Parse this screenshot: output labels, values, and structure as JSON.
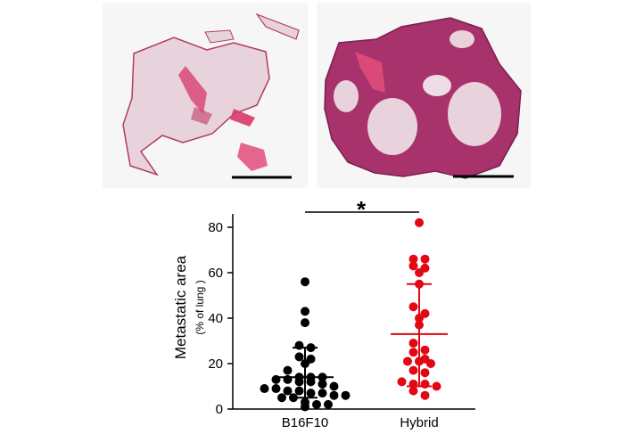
{
  "figure": {
    "histology_panels": [
      "B16F10",
      "Hybrid"
    ]
  },
  "chart_data": {
    "type": "scatter",
    "ylabel": "Metastatic area",
    "ylabel_sub": "(% of lung )",
    "ylim": [
      0,
      85
    ],
    "yticks": [
      0,
      20,
      40,
      60,
      80
    ],
    "categories": [
      "B16F10",
      "Hybrid"
    ],
    "significance": "*",
    "grid": false,
    "series": [
      {
        "name": "B16F10",
        "color": "#000000",
        "values": [
          56,
          43,
          38,
          28,
          27,
          23,
          22,
          20,
          17,
          14,
          14,
          14,
          13,
          13,
          12,
          12,
          11,
          10,
          9,
          9,
          8,
          8,
          7,
          7,
          6,
          6,
          5,
          5,
          3,
          2,
          2,
          1
        ],
        "mean": 14,
        "sd_low": 5,
        "sd_high": 27
      },
      {
        "name": "Hybrid",
        "color": "#e30613",
        "values": [
          82,
          66,
          66,
          63,
          62,
          60,
          55,
          45,
          42,
          40,
          37,
          29,
          26,
          25,
          22,
          21,
          21,
          20,
          17,
          16,
          12,
          11,
          11,
          10,
          8,
          6
        ],
        "mean": 33,
        "sd_low": 10,
        "sd_high": 55
      }
    ]
  }
}
